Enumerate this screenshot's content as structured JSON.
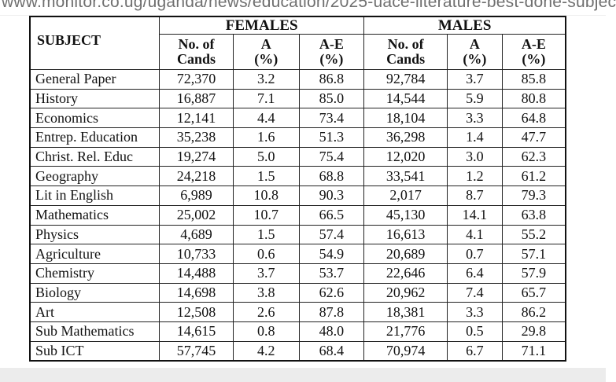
{
  "url": "www.monitor.co.ug/uganda/news/education/2025-uace-literature-best-done-subjec",
  "table": {
    "subject_header": "SUBJECT",
    "groups": [
      "FEMALES",
      "MALES"
    ],
    "sub_headers": [
      [
        "No. of",
        "Cands"
      ],
      [
        "A",
        "(%)"
      ],
      [
        "A-E",
        "(%)"
      ],
      [
        "No. of",
        "Cands"
      ],
      [
        "A",
        "(%)"
      ],
      [
        "A-E",
        "(%)"
      ]
    ],
    "rows": [
      [
        "General Paper",
        "72,370",
        "3.2",
        "86.8",
        "92,784",
        "3.7",
        "85.8"
      ],
      [
        "History",
        "16,887",
        "7.1",
        "85.0",
        "14,544",
        "5.9",
        "80.8"
      ],
      [
        "Economics",
        "12,141",
        "4.4",
        "73.4",
        "18,104",
        "3.3",
        "64.8"
      ],
      [
        "Entrep. Education",
        "35,238",
        "1.6",
        "51.3",
        "36,298",
        "1.4",
        "47.7"
      ],
      [
        "Christ. Rel. Educ",
        "19,274",
        "5.0",
        "75.4",
        "12,020",
        "3.0",
        "62.3"
      ],
      [
        "Geography",
        "24,218",
        "1.5",
        "68.8",
        "33,541",
        "1.2",
        "61.2"
      ],
      [
        "Lit in English",
        "6,989",
        "10.8",
        "90.3",
        "2,017",
        "8.7",
        "79.3"
      ],
      [
        "Mathematics",
        "25,002",
        "10.7",
        "66.5",
        "45,130",
        "14.1",
        "63.8"
      ],
      [
        "Physics",
        "4,689",
        "1.5",
        "57.4",
        "16,613",
        "4.1",
        "55.2"
      ],
      [
        "Agriculture",
        "10,733",
        "0.6",
        "54.9",
        "20,689",
        "0.7",
        "57.1"
      ],
      [
        "Chemistry",
        "14,488",
        "3.7",
        "53.7",
        "22,646",
        "6.4",
        "57.9"
      ],
      [
        "Biology",
        "14,698",
        "3.8",
        "62.6",
        "20,962",
        "7.4",
        "65.7"
      ],
      [
        "Art",
        "12,508",
        "2.6",
        "87.8",
        "18,381",
        "3.3",
        "86.2"
      ],
      [
        "Sub Mathematics",
        "14,615",
        "0.8",
        "48.0",
        "21,776",
        "0.5",
        "29.8"
      ],
      [
        "Sub ICT",
        "57,745",
        "4.2",
        "68.4",
        "70,974",
        "6.7",
        "71.1"
      ]
    ]
  }
}
